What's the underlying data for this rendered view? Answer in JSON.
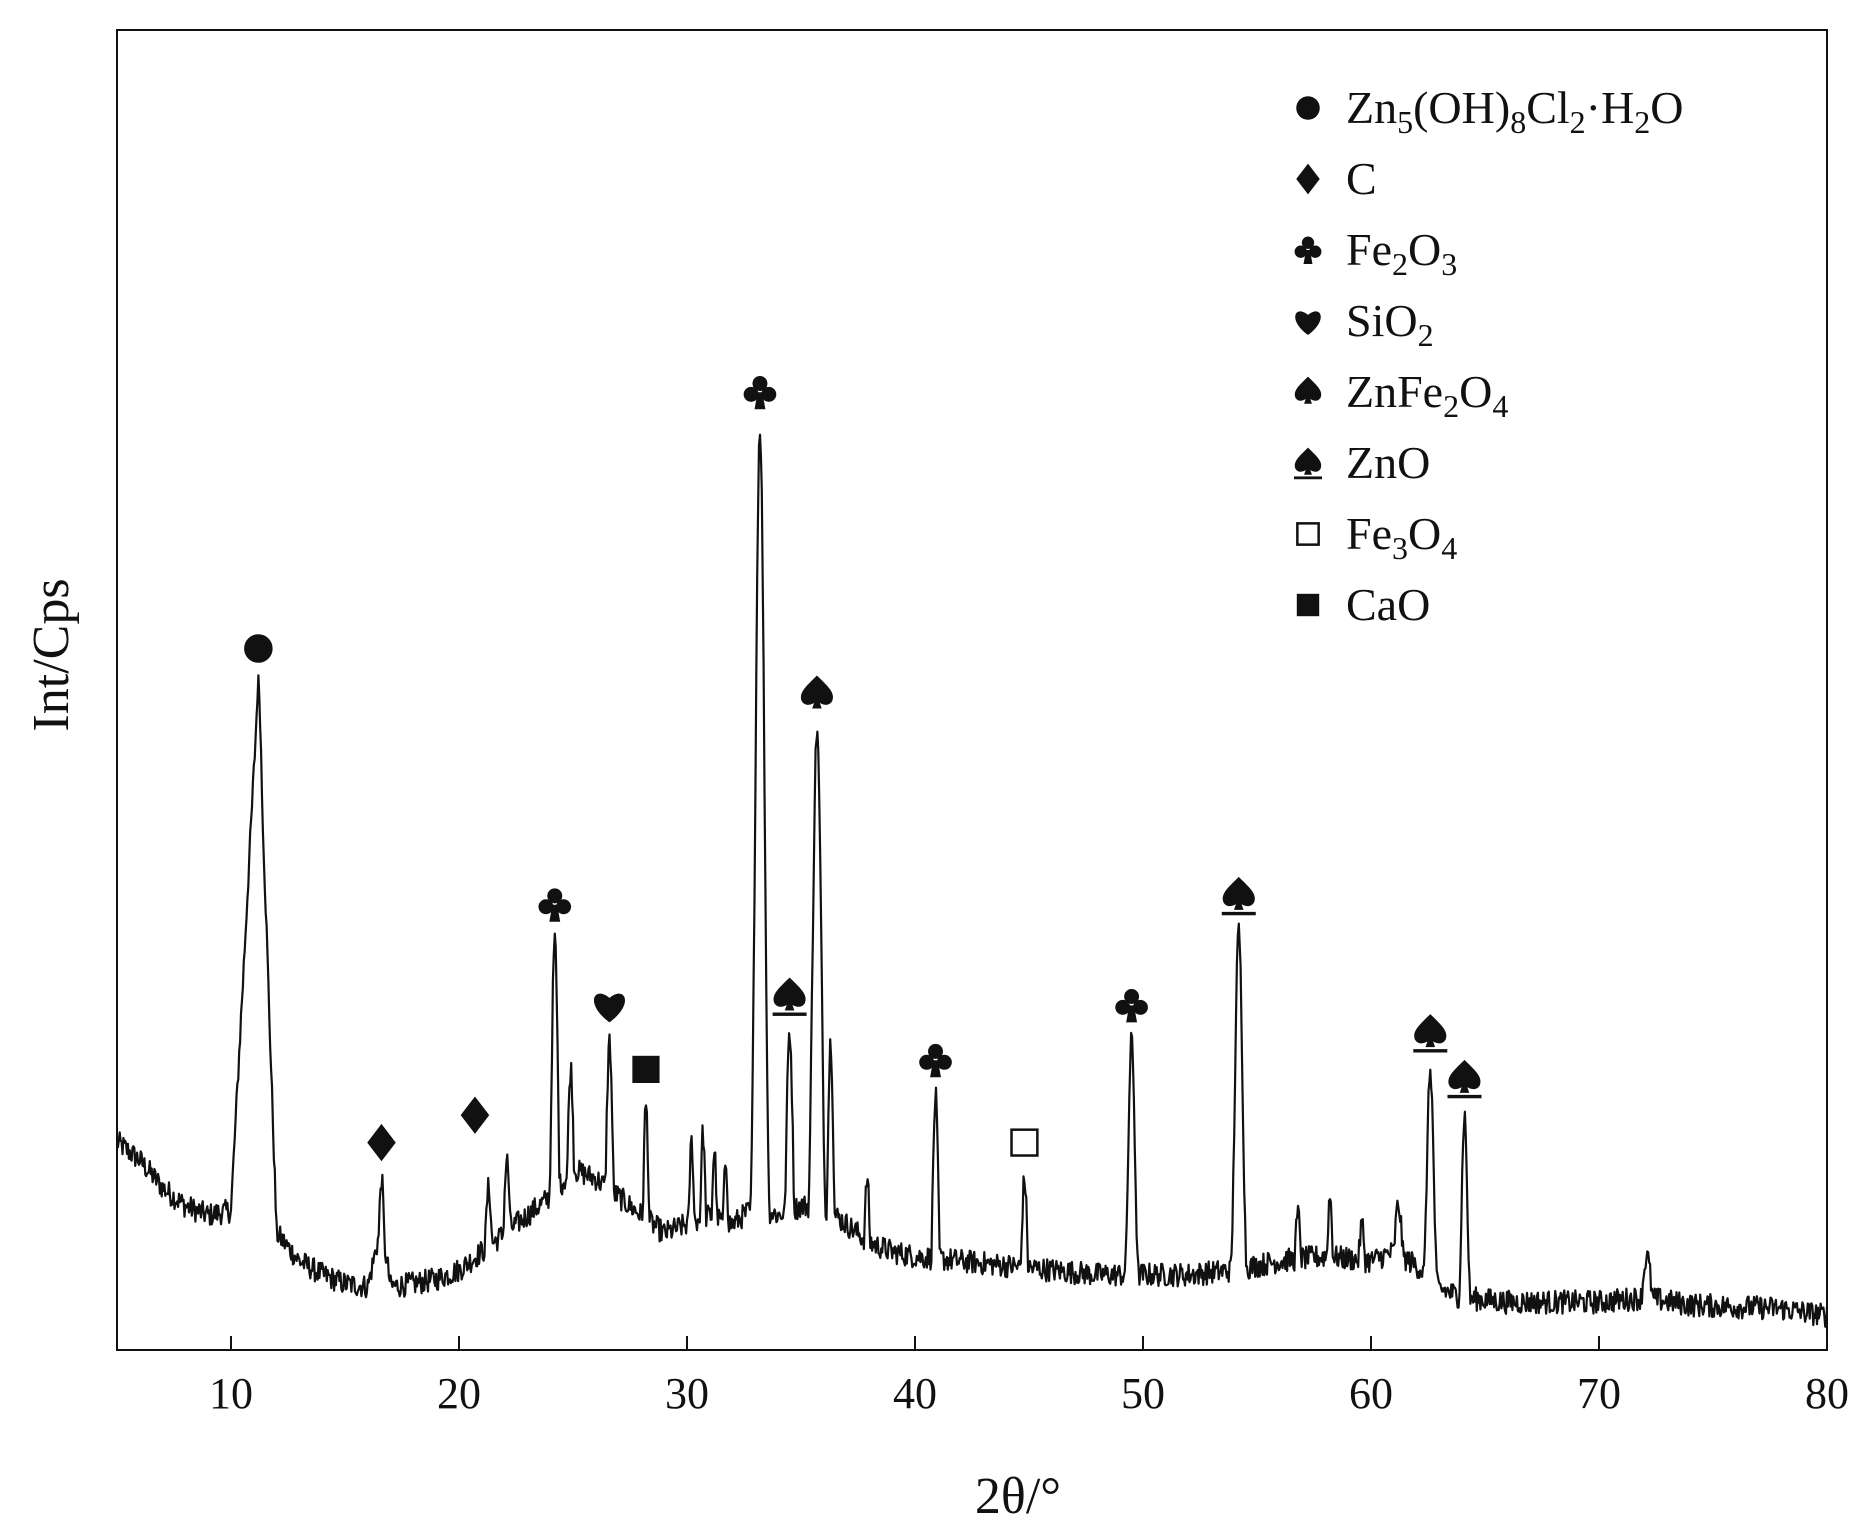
{
  "chart_data": {
    "type": "line",
    "xlabel": "2θ/°",
    "ylabel": "Int/Cps",
    "xlim": [
      5,
      80
    ],
    "ylim": [
      0,
      100
    ],
    "y_ticks_shown": false,
    "x_ticks": [
      10,
      20,
      30,
      40,
      50,
      60,
      70,
      80
    ],
    "grid": false,
    "legend_position": "top-right",
    "colors": {
      "line": "#111111",
      "axis": "#111111",
      "text": "#111111"
    },
    "background_profile": [
      [
        5,
        20
      ],
      [
        6,
        18
      ],
      [
        7,
        15
      ],
      [
        8,
        13
      ],
      [
        9,
        12
      ],
      [
        10,
        12.5
      ],
      [
        11.2,
        70
      ],
      [
        12,
        10
      ],
      [
        13,
        7
      ],
      [
        14,
        5.5
      ],
      [
        15,
        4.5
      ],
      [
        16,
        4.2
      ],
      [
        16.6,
        11
      ],
      [
        17,
        4.2
      ],
      [
        18,
        4.5
      ],
      [
        19,
        5
      ],
      [
        20,
        6
      ],
      [
        21,
        8
      ],
      [
        22,
        10
      ],
      [
        23,
        12
      ],
      [
        24,
        14
      ],
      [
        25,
        17
      ],
      [
        26,
        16
      ],
      [
        27,
        14
      ],
      [
        28,
        12
      ],
      [
        29,
        10
      ],
      [
        30,
        11
      ],
      [
        31,
        12
      ],
      [
        32,
        11
      ],
      [
        33,
        13
      ],
      [
        34,
        12
      ],
      [
        35,
        13
      ],
      [
        36,
        13
      ],
      [
        37,
        11
      ],
      [
        38,
        9
      ],
      [
        39,
        8
      ],
      [
        40,
        7.5
      ],
      [
        42,
        7
      ],
      [
        44,
        6.5
      ],
      [
        46,
        6
      ],
      [
        48,
        5.5
      ],
      [
        50,
        5.5
      ],
      [
        52,
        5.5
      ],
      [
        54,
        6
      ],
      [
        56,
        7
      ],
      [
        58,
        7.5
      ],
      [
        60,
        7
      ],
      [
        61,
        8
      ],
      [
        62,
        6.5
      ],
      [
        63,
        4
      ],
      [
        64,
        3
      ],
      [
        66,
        2.5
      ],
      [
        68,
        2.5
      ],
      [
        70,
        2.5
      ],
      [
        72,
        3
      ],
      [
        74,
        2.2
      ],
      [
        76,
        2
      ],
      [
        78,
        1.8
      ],
      [
        80,
        1
      ]
    ],
    "peaks": [
      {
        "x": 11.2,
        "y": 70,
        "w": 0.25
      },
      {
        "x": 16.6,
        "y": 16,
        "w": 0.12
      },
      {
        "x": 21.3,
        "y": 15,
        "w": 0.15
      },
      {
        "x": 22.1,
        "y": 18,
        "w": 0.15
      },
      {
        "x": 24.2,
        "y": 42,
        "w": 0.15
      },
      {
        "x": 24.9,
        "y": 28,
        "w": 0.15
      },
      {
        "x": 26.6,
        "y": 31,
        "w": 0.15
      },
      {
        "x": 28.2,
        "y": 24,
        "w": 0.12
      },
      {
        "x": 30.2,
        "y": 20,
        "w": 0.12
      },
      {
        "x": 30.7,
        "y": 21,
        "w": 0.12
      },
      {
        "x": 31.2,
        "y": 19,
        "w": 0.12
      },
      {
        "x": 31.7,
        "y": 18,
        "w": 0.12
      },
      {
        "x": 33.2,
        "y": 98,
        "w": 0.2
      },
      {
        "x": 34.5,
        "y": 32,
        "w": 0.15
      },
      {
        "x": 35.7,
        "y": 65,
        "w": 0.2
      },
      {
        "x": 36.3,
        "y": 31,
        "w": 0.13
      },
      {
        "x": 37.9,
        "y": 16,
        "w": 0.12
      },
      {
        "x": 40.9,
        "y": 25,
        "w": 0.12
      },
      {
        "x": 44.8,
        "y": 16,
        "w": 0.12
      },
      {
        "x": 49.5,
        "y": 31,
        "w": 0.15
      },
      {
        "x": 54.2,
        "y": 43,
        "w": 0.17
      },
      {
        "x": 56.8,
        "y": 12,
        "w": 0.15
      },
      {
        "x": 58.2,
        "y": 14,
        "w": 0.12
      },
      {
        "x": 59.6,
        "y": 11,
        "w": 0.15
      },
      {
        "x": 61.2,
        "y": 13,
        "w": 0.2
      },
      {
        "x": 62.6,
        "y": 28,
        "w": 0.15
      },
      {
        "x": 64.1,
        "y": 23,
        "w": 0.12
      },
      {
        "x": 72.1,
        "y": 7.5,
        "w": 0.18
      }
    ],
    "annotations": [
      {
        "phase": "Zn5(OH)8Cl2·H2O",
        "x": 11.2,
        "y": 70
      },
      {
        "phase": "C",
        "x": 16.6,
        "y": 16
      },
      {
        "phase": "C",
        "x": 20.7,
        "y": 19
      },
      {
        "phase": "Fe2O3",
        "x": 24.2,
        "y": 42
      },
      {
        "phase": "SiO2",
        "x": 26.6,
        "y": 31
      },
      {
        "phase": "CaO",
        "x": 28.2,
        "y": 24
      },
      {
        "phase": "Fe2O3",
        "x": 33.2,
        "y": 98
      },
      {
        "phase": "ZnO",
        "x": 34.5,
        "y": 32
      },
      {
        "phase": "ZnFe2O4",
        "x": 35.7,
        "y": 65
      },
      {
        "phase": "Fe2O3",
        "x": 40.9,
        "y": 25
      },
      {
        "phase": "Fe3O4",
        "x": 44.8,
        "y": 16
      },
      {
        "phase": "Fe2O3",
        "x": 49.5,
        "y": 31
      },
      {
        "phase": "ZnO",
        "x": 54.2,
        "y": 43
      },
      {
        "phase": "ZnO",
        "x": 62.6,
        "y": 28
      },
      {
        "phase": "ZnO",
        "x": 64.1,
        "y": 23
      }
    ],
    "legend": [
      {
        "symbol": "circle",
        "label": "Zn5(OH)8Cl2·H2O",
        "parts": [
          [
            "Zn",
            ""
          ],
          [
            "5",
            "sub"
          ],
          [
            "(OH)",
            ""
          ],
          [
            "8",
            "sub"
          ],
          [
            "Cl",
            ""
          ],
          [
            "2",
            "sub"
          ],
          [
            "·H",
            ""
          ],
          [
            "2",
            "sub"
          ],
          [
            "O",
            ""
          ]
        ]
      },
      {
        "symbol": "diamond",
        "label": "C",
        "parts": [
          [
            "C",
            ""
          ]
        ]
      },
      {
        "symbol": "club",
        "label": "Fe2O3",
        "parts": [
          [
            "Fe",
            ""
          ],
          [
            "2",
            "sub"
          ],
          [
            "O",
            ""
          ],
          [
            "3",
            "sub"
          ]
        ]
      },
      {
        "symbol": "heart",
        "label": "SiO2",
        "parts": [
          [
            "SiO",
            ""
          ],
          [
            "2",
            "sub"
          ]
        ]
      },
      {
        "symbol": "spade",
        "label": "ZnFe2O4",
        "parts": [
          [
            "ZnFe",
            ""
          ],
          [
            "2",
            "sub"
          ],
          [
            "O",
            ""
          ],
          [
            "4",
            "sub"
          ]
        ]
      },
      {
        "symbol": "spade-bar",
        "label": "ZnO",
        "parts": [
          [
            "ZnO",
            ""
          ]
        ]
      },
      {
        "symbol": "open-square",
        "label": "Fe3O4",
        "parts": [
          [
            "Fe",
            ""
          ],
          [
            "3",
            "sub"
          ],
          [
            "O",
            ""
          ],
          [
            "4",
            "sub"
          ]
        ]
      },
      {
        "symbol": "filled-square",
        "label": "CaO",
        "parts": [
          [
            "CaO",
            ""
          ]
        ]
      }
    ]
  }
}
